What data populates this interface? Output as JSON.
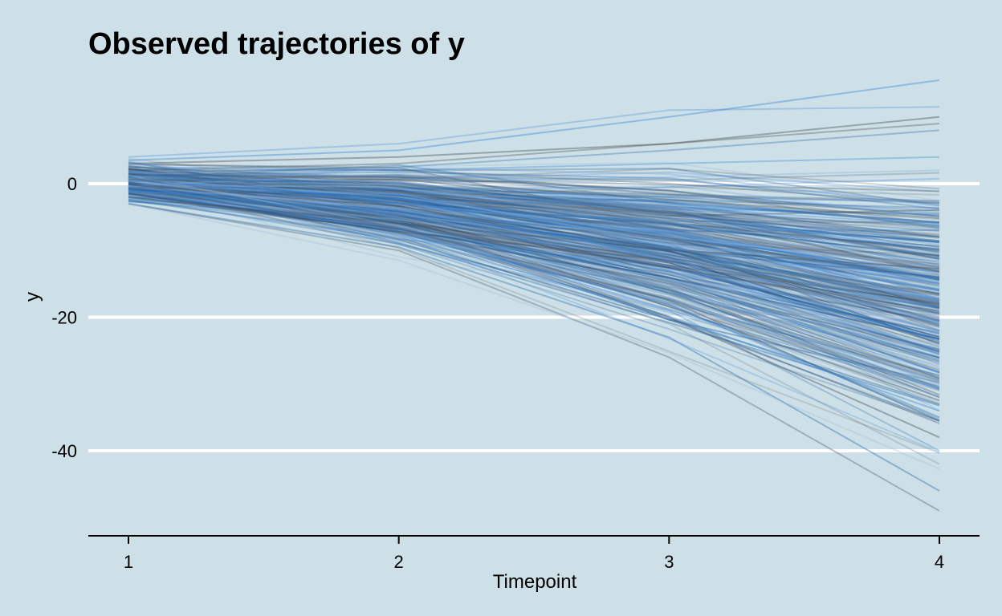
{
  "chart_data": {
    "type": "line",
    "title": "Observed trajectories of y",
    "xlabel": "Timepoint",
    "ylabel": "y",
    "x": [
      1,
      2,
      3,
      4
    ],
    "x_ticks": [
      "1",
      "2",
      "3",
      "4"
    ],
    "y_ticks": [
      0,
      -20,
      -40
    ],
    "y_tick_labels": [
      "0",
      "-20",
      "-40"
    ],
    "xlim": [
      0.85,
      4.15
    ],
    "ylim": [
      -52.5,
      16
    ],
    "grid": "horizontal major",
    "legend": "none",
    "series_description": "several hundred individual trajectories; starting values about -3 to 5 at timepoint 1, fanning out to about -50 to 15 at timepoint 4",
    "series": [
      {
        "values": [
          2.0,
          1.0,
          -3.0,
          -8.0
        ]
      },
      {
        "values": [
          0.5,
          -2.0,
          -8.0,
          -18.0
        ]
      },
      {
        "values": [
          -1.0,
          -5.0,
          -14.0,
          -28.0
        ]
      },
      {
        "values": [
          1.0,
          0.0,
          -2.0,
          -4.0
        ]
      },
      {
        "values": [
          3.0,
          4.0,
          6.0,
          10.0
        ]
      },
      {
        "values": [
          -2.0,
          -7.0,
          -18.0,
          -36.0
        ]
      },
      {
        "values": [
          0.0,
          -3.0,
          -10.0,
          -22.0
        ]
      },
      {
        "values": [
          4.0,
          6.0,
          11.0,
          11.5
        ]
      },
      {
        "values": [
          1.5,
          2.5,
          5.0,
          8.0
        ]
      },
      {
        "values": [
          -3.0,
          -10.0,
          -26.0,
          -49.0
        ]
      },
      {
        "values": [
          -0.5,
          -4.0,
          -12.0,
          -25.0
        ]
      },
      {
        "values": [
          2.5,
          0.5,
          -6.0,
          -15.0
        ]
      },
      {
        "values": [
          0.0,
          -1.0,
          -4.0,
          -12.0
        ]
      },
      {
        "values": [
          -1.5,
          -6.0,
          -16.0,
          -32.0
        ]
      },
      {
        "values": [
          3.5,
          5.0,
          10.0,
          15.5
        ]
      },
      {
        "values": [
          1.0,
          -2.0,
          -9.0,
          -20.0
        ]
      },
      {
        "values": [
          -2.5,
          -8.0,
          -21.0,
          -42.0
        ]
      },
      {
        "values": [
          0.5,
          0.0,
          1.0,
          2.0
        ]
      },
      {
        "values": [
          2.0,
          3.0,
          6.0,
          9.0
        ]
      },
      {
        "values": [
          -1.0,
          -3.5,
          -11.0,
          -24.0
        ]
      },
      {
        "values": [
          0.0,
          -5.0,
          -15.0,
          -30.0
        ]
      },
      {
        "values": [
          1.0,
          -1.0,
          -6.0,
          -13.0
        ]
      },
      {
        "values": [
          -2.0,
          -9.0,
          -19.0,
          -40.0
        ]
      },
      {
        "values": [
          3.0,
          2.0,
          0.0,
          -3.0
        ]
      },
      {
        "values": [
          -0.5,
          -2.5,
          -7.0,
          -16.0
        ]
      },
      {
        "values": [
          1.5,
          1.0,
          -1.0,
          -6.0
        ]
      },
      {
        "values": [
          -1.5,
          -7.0,
          -17.0,
          -35.0
        ]
      },
      {
        "values": [
          0.0,
          -4.0,
          -13.0,
          -27.0
        ]
      },
      {
        "values": [
          2.5,
          2.0,
          3.0,
          4.0
        ]
      },
      {
        "values": [
          -3.0,
          -9.5,
          -23.0,
          -46.0
        ]
      },
      {
        "values": [
          0.5,
          -1.5,
          -5.0,
          -10.0
        ]
      },
      {
        "values": [
          -1.0,
          -6.0,
          -15.0,
          -31.0
        ]
      },
      {
        "values": [
          1.0,
          -3.0,
          -11.0,
          -21.0
        ]
      },
      {
        "values": [
          -2.0,
          -5.0,
          -12.0,
          -19.0
        ]
      },
      {
        "values": [
          0.0,
          -2.0,
          -9.0,
          -24.0
        ]
      },
      {
        "values": [
          1.5,
          -2.5,
          -13.0,
          -34.0
        ]
      },
      {
        "values": [
          -1.0,
          -4.5,
          -10.0,
          -14.0
        ]
      },
      {
        "values": [
          2.0,
          -0.5,
          -7.0,
          -22.0
        ]
      },
      {
        "values": [
          0.5,
          -3.5,
          -14.0,
          -29.0
        ]
      },
      {
        "values": [
          -0.5,
          -6.5,
          -20.0,
          -38.0
        ]
      }
    ]
  },
  "style": {
    "background": "#cde0e7",
    "line_colors": [
      "#3a86d6",
      "#2f6faf",
      "#5a6e80",
      "#7fa8d8",
      "#4a4f55",
      "#9bbad6",
      "#1f5a99"
    ]
  }
}
